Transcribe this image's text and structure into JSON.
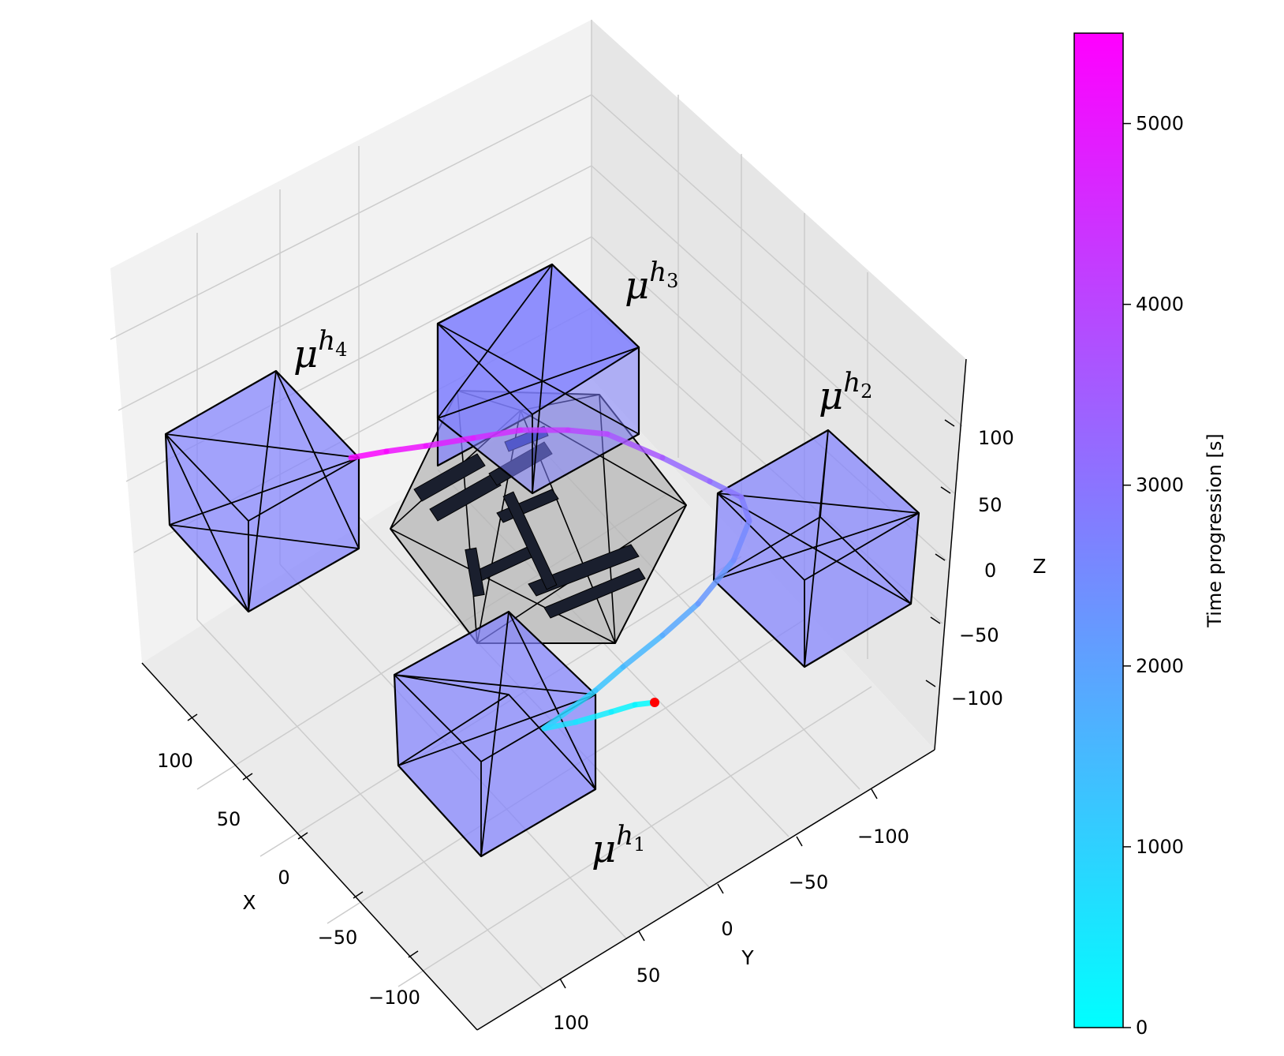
{
  "chart_data": {
    "type": "scatter",
    "projection": "3d",
    "axes": {
      "x": {
        "label": "X",
        "ticks": [
          "100",
          "50",
          "0",
          "−50",
          "−100"
        ]
      },
      "y": {
        "label": "Y",
        "ticks": [
          "−100",
          "−50",
          "0",
          "50",
          "100"
        ]
      },
      "z": {
        "label": "Z",
        "ticks": [
          "100",
          "50",
          "0",
          "−50",
          "−100"
        ]
      }
    },
    "colorbar": {
      "label": "Time progression [s]",
      "ticks": [
        "5000",
        "4000",
        "3000",
        "2000",
        "1000",
        "0"
      ],
      "range": [
        0,
        5500
      ],
      "colormap": [
        "#00ffff",
        "#ff00ff"
      ]
    },
    "hold_regions": [
      {
        "name": "μ",
        "sup": "h",
        "sub": "1"
      },
      {
        "name": "μ",
        "sup": "h",
        "sub": "2"
      },
      {
        "name": "μ",
        "sup": "h",
        "sub": "3"
      },
      {
        "name": "μ",
        "sup": "h",
        "sub": "4"
      }
    ],
    "trajectory_time_range_s": [
      0,
      5500
    ],
    "start_marker_color": "#ff0000",
    "grid": true,
    "colors": {
      "hold_box_fill": "#8080ff",
      "central_polytope_fill": "#b4b4b4",
      "pane": "#f2f2f2",
      "grid": "#cccccc"
    }
  }
}
